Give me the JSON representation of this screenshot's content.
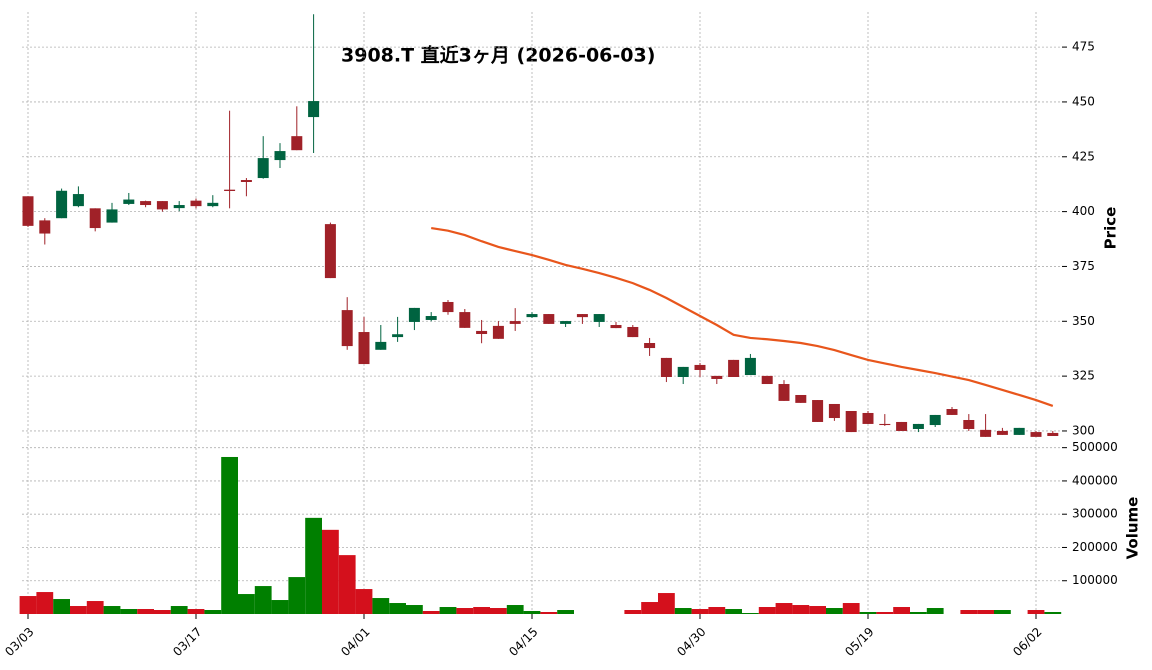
{
  "chart_data": {
    "type": "candlestick",
    "title": "3908.T  直近3ヶ月  (2026-06-03)",
    "ylabel": "Price",
    "grid": true,
    "categories": [
      "03/03",
      null,
      null,
      null,
      null,
      null,
      null,
      null,
      null,
      null,
      "03/17",
      null,
      null,
      null,
      null,
      null,
      null,
      null,
      null,
      null,
      "04/01",
      null,
      null,
      null,
      null,
      null,
      null,
      null,
      null,
      null,
      "04/15",
      null,
      null,
      null,
      null,
      null,
      null,
      null,
      null,
      null,
      "04/30",
      null,
      null,
      null,
      null,
      null,
      null,
      null,
      null,
      null,
      "05/19",
      null,
      null,
      null,
      null,
      null,
      null,
      null,
      null,
      null,
      "06/02",
      null
    ],
    "open": [
      407,
      396,
      397,
      402.5,
      401.5,
      395,
      403.5,
      404.8,
      404.8,
      401.6,
      405,
      402.5,
      410,
      414.4,
      415.3,
      423.5,
      434.4,
      443.1,
      394.3,
      355.1,
      345.1,
      337,
      342.8,
      349.7,
      350.6,
      358.8,
      354.2,
      345.6,
      347.9,
      350.1,
      351.9,
      353.3,
      348.8,
      353.3,
      349.7,
      348.3,
      347.4,
      340.1,
      333.3,
      324.6,
      330.1,
      325.1,
      332.4,
      325.5,
      325.1,
      321.4,
      316.4,
      314.1,
      312.3,
      309.1,
      308.2,
      303.2,
      304.1,
      300.9,
      302.7,
      310,
      305,
      300.5,
      300,
      298.2,
      299.5,
      299.1
    ],
    "high": [
      407,
      397,
      410.5,
      411.5,
      401.5,
      404,
      408.5,
      405,
      404.8,
      404.8,
      406,
      407.5,
      446,
      415.3,
      434.4,
      431.2,
      448,
      490,
      395,
      361,
      352,
      348.3,
      352,
      356.1,
      354.2,
      359.7,
      355.6,
      350.6,
      350.1,
      356,
      354.2,
      353.3,
      350.1,
      353.3,
      353.3,
      349.7,
      348.3,
      342.4,
      333.3,
      329.2,
      331,
      325.1,
      332.4,
      335.1,
      325.1,
      323.2,
      316.4,
      314.1,
      312.3,
      309.1,
      309.1,
      307.7,
      304.1,
      303.2,
      307.3,
      310.9,
      307.7,
      307.7,
      301.4,
      301.4,
      300,
      300
    ],
    "low": [
      393,
      385,
      397,
      402,
      391,
      395,
      403,
      402,
      400,
      400.2,
      401.5,
      402,
      401.5,
      407,
      415,
      419.9,
      428,
      426.7,
      369.7,
      337,
      330.5,
      337,
      340.6,
      346,
      350,
      353,
      347,
      340,
      342,
      345.6,
      351.5,
      348.8,
      347.4,
      348.8,
      347.4,
      346.9,
      342.8,
      334.2,
      322.3,
      321.4,
      324.6,
      321.4,
      324.6,
      325.5,
      321.4,
      313.7,
      312.8,
      304.1,
      304.6,
      299.5,
      303.2,
      302.3,
      300,
      299.5,
      301.8,
      307.3,
      300,
      297.3,
      298.2,
      298.2,
      297.3,
      297.7
    ],
    "close": [
      393.5,
      390,
      409.5,
      408,
      392.5,
      401,
      405.5,
      403,
      401,
      403,
      402.5,
      404,
      409.4,
      413.5,
      424.4,
      427.6,
      428,
      450.4,
      369.7,
      338.7,
      330.5,
      340.6,
      344.1,
      356.1,
      352.4,
      354.2,
      347,
      344.2,
      342,
      348.8,
      353.3,
      348.8,
      350.1,
      351.9,
      353.3,
      346.9,
      342.8,
      337.8,
      324.6,
      329.2,
      327.8,
      323.7,
      324.6,
      333.3,
      321.4,
      313.7,
      312.8,
      304.1,
      305.9,
      299.5,
      303.2,
      302.7,
      300,
      303.2,
      307.3,
      307.3,
      300.9,
      297.3,
      298.2,
      301.4,
      297.3,
      297.7
    ],
    "up_color": "#006340",
    "down_color": "#a02128",
    "ylim": [
      293.6,
      491
    ],
    "yticks": [
      300,
      325,
      350,
      375,
      400,
      425,
      450,
      475
    ],
    "moving_average": {
      "color": "#e8561c",
      "values": [
        null,
        null,
        null,
        null,
        null,
        null,
        null,
        null,
        null,
        null,
        null,
        null,
        null,
        null,
        null,
        null,
        null,
        null,
        null,
        null,
        null,
        null,
        null,
        null,
        392.5,
        391.3,
        389.3,
        386.5,
        383.9,
        382,
        380.2,
        378,
        375.7,
        373.9,
        372,
        369.8,
        367.4,
        364.3,
        360.6,
        356.5,
        352.4,
        348.3,
        343.8,
        342.4,
        341.8,
        341,
        340.1,
        338.7,
        336.9,
        334.6,
        332.4,
        330.8,
        329.2,
        327.8,
        326.4,
        324.8,
        323.2,
        321,
        318.7,
        316.4,
        314.1,
        311.4
      ]
    },
    "volume": {
      "ylabel": "Volume",
      "up_color": "#007f00",
      "down_color": "#d4101c",
      "ylim": [
        0,
        505000
      ],
      "yticks": [
        100000,
        200000,
        300000,
        400000,
        500000
      ],
      "values": [
        54000,
        66000,
        45000,
        24000,
        39000,
        24000,
        15000,
        15000,
        12000,
        24000,
        15000,
        12000,
        472000,
        60000,
        84000,
        42000,
        111000,
        289000,
        253000,
        177000,
        75000,
        48000,
        33000,
        27000,
        9000,
        21000,
        18000,
        21000,
        18000,
        27000,
        9000,
        6000,
        12000,
        0,
        0,
        0,
        12000,
        36000,
        63000,
        18000,
        15000,
        21000,
        15000,
        3000,
        21000,
        33000,
        27000,
        24000,
        18000,
        33000,
        6000,
        6000,
        21000,
        6000,
        18000,
        0,
        12000,
        12000,
        12000,
        0,
        12000,
        6000
      ]
    }
  }
}
